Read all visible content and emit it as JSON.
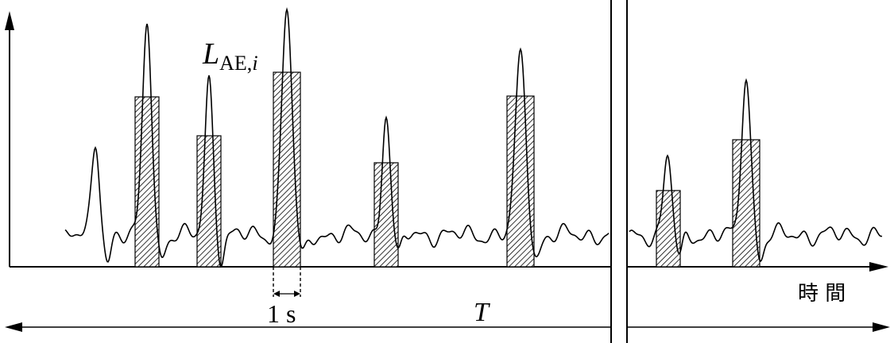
{
  "labels": {
    "level_symbol": "L",
    "level_subscript": "AE,",
    "level_index": "i",
    "duration_label": "1 s",
    "period_label": "T",
    "time_axis_label": "時 間"
  },
  "colors": {
    "ink": "#000000",
    "background": "#ffffff"
  }
}
